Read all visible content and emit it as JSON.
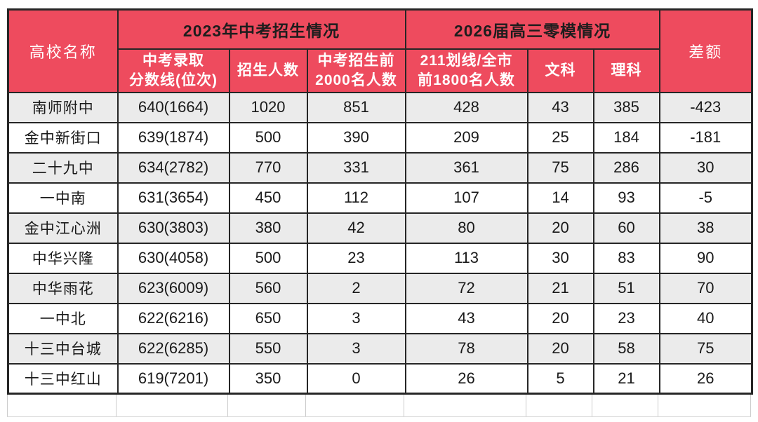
{
  "chart_data": {
    "type": "table",
    "header": {
      "school": "高校名称",
      "group_2023": "2023年中考招生情况",
      "group_2026": "2026届高三零模情况",
      "difference": "差额"
    },
    "sub_headers": [
      "中考录取\n分数线(位次)",
      "招生人数",
      "中考招生前\n2000名人数",
      "211划线/全市\n前1800名人数",
      "文科",
      "理科"
    ],
    "columns": [
      "高校名称",
      "中考录取分数线(位次)",
      "招生人数",
      "中考招生前2000名人数",
      "211划线/全市前1800名人数",
      "文科",
      "理科",
      "差额"
    ],
    "rows": [
      [
        "南师附中",
        "640(1664)",
        "1020",
        "851",
        "428",
        "43",
        "385",
        "-423"
      ],
      [
        "金中新街口",
        "639(1874)",
        "500",
        "390",
        "209",
        "25",
        "184",
        "-181"
      ],
      [
        "二十九中",
        "634(2782)",
        "770",
        "331",
        "361",
        "75",
        "286",
        "30"
      ],
      [
        "一中南",
        "631(3654)",
        "450",
        "112",
        "107",
        "14",
        "93",
        "-5"
      ],
      [
        "金中江心洲",
        "630(3803)",
        "380",
        "42",
        "80",
        "20",
        "60",
        "38"
      ],
      [
        "中华兴隆",
        "630(4058)",
        "500",
        "23",
        "113",
        "30",
        "83",
        "90"
      ],
      [
        "中华雨花",
        "623(6009)",
        "560",
        "2",
        "72",
        "21",
        "51",
        "70"
      ],
      [
        "一中北",
        "622(6216)",
        "650",
        "3",
        "43",
        "20",
        "23",
        "40"
      ],
      [
        "十三中台城",
        "622(6285)",
        "550",
        "3",
        "78",
        "20",
        "58",
        "75"
      ],
      [
        "十三中红山",
        "619(7201)",
        "350",
        "0",
        "26",
        "5",
        "21",
        "26"
      ]
    ]
  },
  "colors": {
    "header_red": "#ee4b5e",
    "header_text_black": "#1d1d1d",
    "header_text_white": "#ffffff",
    "row_alt_gray": "#ebebeb",
    "border_dark": "#262626",
    "body_text": "#1a1a1a"
  }
}
